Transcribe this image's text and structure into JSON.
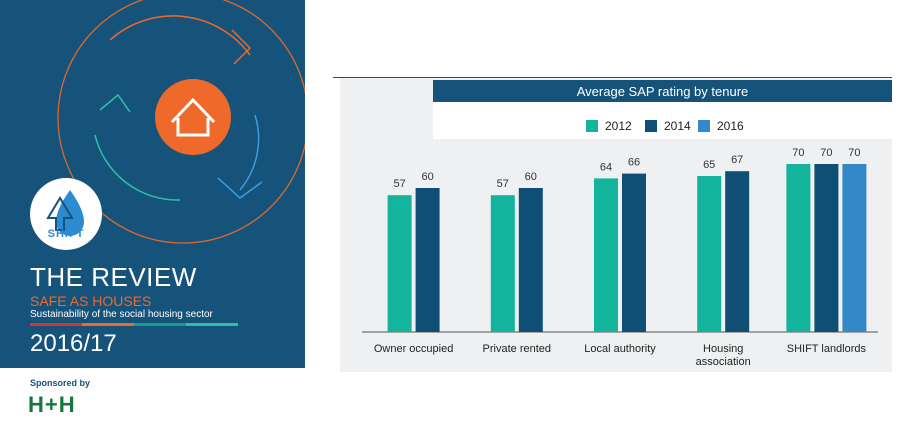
{
  "cover": {
    "shift_logo_text": "SHIFT",
    "title": "THE REVIEW",
    "subtitle": "SAFE AS HOUSES",
    "description": "Sustainability of the social housing sector",
    "year": "2016/17",
    "sponsor_label": "Sponsored by",
    "sponsor_logo_text": "H+H",
    "colors": {
      "panel": "#16537a",
      "accent": "#ef6a2a",
      "house_circle": "#ef6a2a"
    }
  },
  "chart_data": {
    "type": "bar",
    "title": "Average SAP rating by tenure",
    "xlabel": "",
    "ylabel": "",
    "ylim": [
      0,
      75
    ],
    "grid": false,
    "legend_position": "top",
    "categories": [
      "Owner occupied",
      "Private rented",
      "Local authority",
      "Housing association",
      "SHIFT landlords"
    ],
    "category_label_lines": [
      [
        "Owner occupied"
      ],
      [
        "Private rented"
      ],
      [
        "Local authority"
      ],
      [
        "Housing",
        "association"
      ],
      [
        "SHIFT landlords"
      ]
    ],
    "series": [
      {
        "name": "2012",
        "color": "#13b49c",
        "values": [
          57,
          57,
          64,
          65,
          70
        ]
      },
      {
        "name": "2014",
        "color": "#0f4f75",
        "values": [
          60,
          60,
          66,
          67,
          70
        ]
      },
      {
        "name": "2016",
        "color": "#3389c7",
        "values": [
          null,
          null,
          null,
          null,
          70
        ]
      }
    ]
  }
}
